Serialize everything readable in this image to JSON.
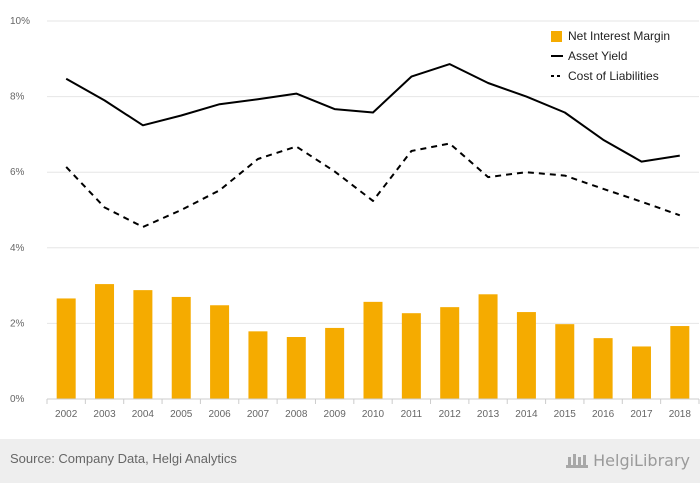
{
  "chart_data": {
    "type": "bar",
    "categories": [
      "2002",
      "2003",
      "2004",
      "2005",
      "2006",
      "2007",
      "2008",
      "2009",
      "2010",
      "2011",
      "2012",
      "2013",
      "2014",
      "2015",
      "2016",
      "2017",
      "2018"
    ],
    "ylim": [
      0,
      10
    ],
    "yticks": [
      0,
      2,
      4,
      6,
      8,
      10
    ],
    "ytick_labels": [
      "0%",
      "2%",
      "4%",
      "6%",
      "8%",
      "10%"
    ],
    "grid": true,
    "legend_position": "top-right",
    "title": "",
    "xlabel": "",
    "ylabel": "",
    "series": [
      {
        "name": "Net Interest Margin",
        "type": "bar",
        "color": "#f5ab00",
        "values": [
          2.66,
          3.04,
          2.88,
          2.7,
          2.48,
          1.79,
          1.64,
          1.88,
          2.57,
          2.27,
          2.43,
          2.77,
          2.3,
          1.98,
          1.61,
          1.39,
          1.93
        ]
      },
      {
        "name": "Asset Yield",
        "type": "line",
        "style": "solid",
        "color": "#000000",
        "values": [
          8.47,
          7.9,
          7.24,
          7.5,
          7.8,
          7.93,
          8.08,
          7.67,
          7.58,
          8.53,
          8.86,
          8.36,
          8.0,
          7.58,
          6.86,
          6.28,
          6.44
        ]
      },
      {
        "name": "Cost of Liabilities",
        "type": "line",
        "style": "dashed",
        "color": "#000000",
        "values": [
          6.14,
          5.07,
          4.55,
          5.0,
          5.52,
          6.35,
          6.68,
          6.02,
          5.24,
          6.56,
          6.76,
          5.87,
          6.0,
          5.91,
          5.56,
          5.22,
          4.86
        ]
      }
    ]
  },
  "footer": {
    "source": "Source: Company Data, Helgi Analytics",
    "logo_text": "HelgiLibrary"
  }
}
